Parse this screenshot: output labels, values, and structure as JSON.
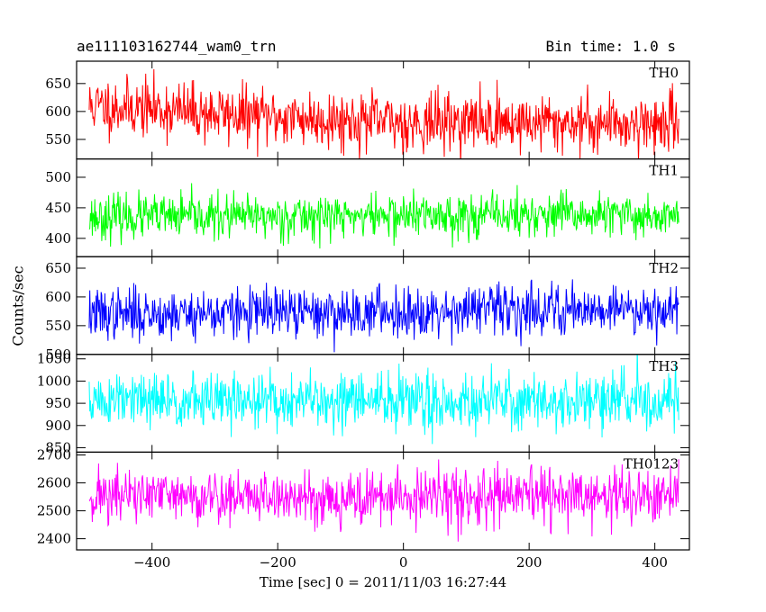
{
  "header": {
    "left_title": "ae111103162744_wam0_trn",
    "right_title": "Bin time: 1.0 s"
  },
  "chart_data": {
    "type": "line",
    "x": {
      "label": "Time [sec] 0 = 2011/11/03 16:27:44",
      "range": [
        -520,
        455
      ],
      "data_range": [
        -500,
        438
      ],
      "ticks": [
        -400,
        -200,
        0,
        200,
        400
      ],
      "tick_labels": [
        "−400",
        "−200",
        "0",
        "200",
        "400"
      ]
    },
    "ylabel": "Counts/sec",
    "series": [
      {
        "name": "TH0",
        "color": "#ff0000",
        "ylim": [
          515,
          690
        ],
        "ticks": [
          550,
          600,
          650
        ],
        "trend": [
          [
            -500,
            610
          ],
          [
            -400,
            605
          ],
          [
            -300,
            596
          ],
          [
            -200,
            590
          ],
          [
            -100,
            585
          ],
          [
            0,
            580
          ],
          [
            100,
            582
          ],
          [
            200,
            580
          ],
          [
            300,
            580
          ],
          [
            438,
            578
          ]
        ],
        "noise": 26,
        "seed": 11
      },
      {
        "name": "TH1",
        "color": "#00ff00",
        "ylim": [
          370,
          530
        ],
        "ticks": [
          400,
          450,
          500
        ],
        "trend": [
          [
            -500,
            435
          ],
          [
            -300,
            435
          ],
          [
            -100,
            437
          ],
          [
            100,
            438
          ],
          [
            300,
            437
          ],
          [
            438,
            437
          ]
        ],
        "noise": 18,
        "seed": 23
      },
      {
        "name": "TH2",
        "color": "#0000ff",
        "ylim": [
          500,
          670
        ],
        "ticks": [
          500,
          550,
          600,
          650
        ],
        "trend": [
          [
            -500,
            570
          ],
          [
            -300,
            572
          ],
          [
            -100,
            572
          ],
          [
            100,
            578
          ],
          [
            300,
            580
          ],
          [
            438,
            580
          ]
        ],
        "noise": 22,
        "seed": 37
      },
      {
        "name": "TH3",
        "color": "#00ffff",
        "ylim": [
          840,
          1060
        ],
        "ticks": [
          850,
          900,
          950,
          1000,
          1050
        ],
        "trend": [
          [
            -500,
            955
          ],
          [
            -300,
            955
          ],
          [
            -100,
            955
          ],
          [
            100,
            955
          ],
          [
            300,
            955
          ],
          [
            438,
            955
          ]
        ],
        "noise": 32,
        "seed": 51
      },
      {
        "name": "TH0123",
        "color": "#ff00ff",
        "ylim": [
          2360,
          2710
        ],
        "ticks": [
          2400,
          2500,
          2600,
          2700
        ],
        "trend": [
          [
            -500,
            2555
          ],
          [
            -300,
            2550
          ],
          [
            -100,
            2545
          ],
          [
            100,
            2548
          ],
          [
            300,
            2550
          ],
          [
            438,
            2550
          ]
        ],
        "noise": 50,
        "seed": 71
      }
    ],
    "grid": false,
    "legend": "panel labels top-right"
  }
}
